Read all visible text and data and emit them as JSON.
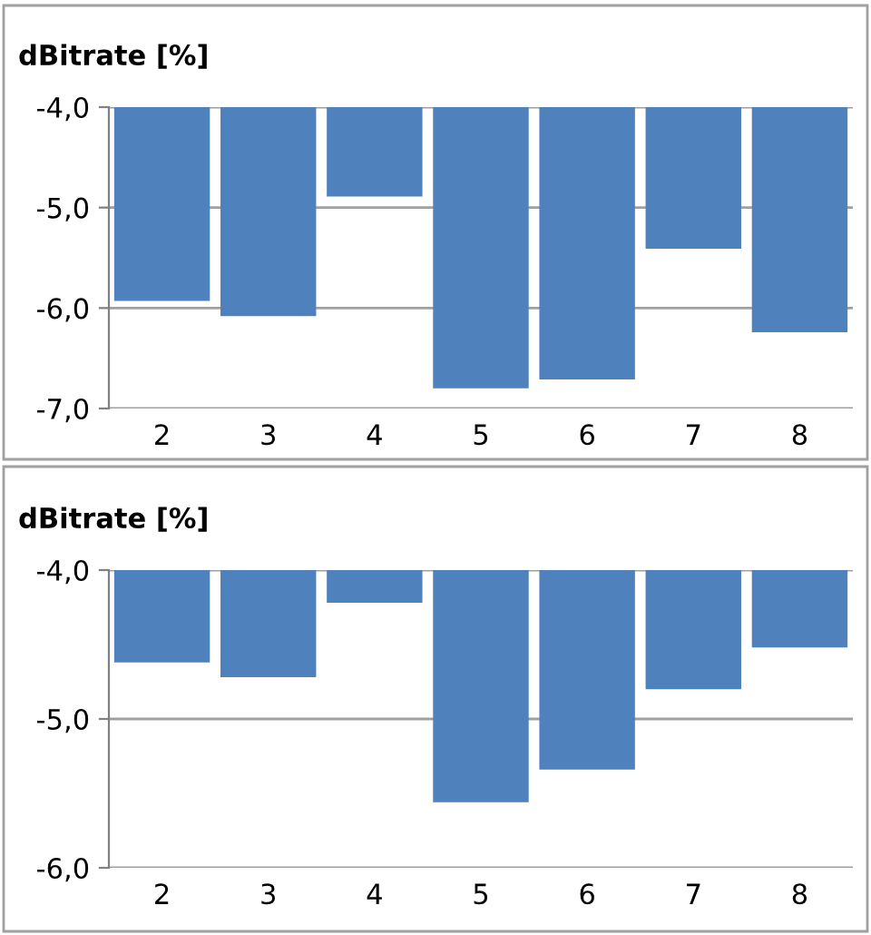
{
  "chart_data": [
    {
      "type": "bar",
      "title": "dBitrate [%]",
      "categories": [
        "2",
        "3",
        "4",
        "5",
        "6",
        "7",
        "8"
      ],
      "values": [
        -5.93,
        -6.08,
        -4.89,
        -6.8,
        -6.71,
        -5.41,
        -6.24
      ],
      "color": "#4f81bd",
      "ylim": [
        -7,
        -4
      ],
      "yticks": [
        {
          "value": -7,
          "label": "-7,0"
        },
        {
          "value": -6,
          "label": "-6,0"
        },
        {
          "value": -5,
          "label": "-5,0"
        },
        {
          "value": -4,
          "label": "-4,0"
        }
      ],
      "grid": "y",
      "legend": false
    },
    {
      "type": "bar",
      "title": "dBitrate [%]",
      "categories": [
        "2",
        "3",
        "4",
        "5",
        "6",
        "7",
        "8"
      ],
      "values": [
        -4.62,
        -4.72,
        -4.22,
        -5.56,
        -5.34,
        -4.8,
        -4.52
      ],
      "color": "#4f81bd",
      "ylim": [
        -6,
        -4
      ],
      "yticks": [
        {
          "value": -6,
          "label": "-6,0"
        },
        {
          "value": -5,
          "label": "-5,0"
        },
        {
          "value": -4,
          "label": "-4,0"
        }
      ],
      "grid": "y",
      "legend": false
    }
  ]
}
